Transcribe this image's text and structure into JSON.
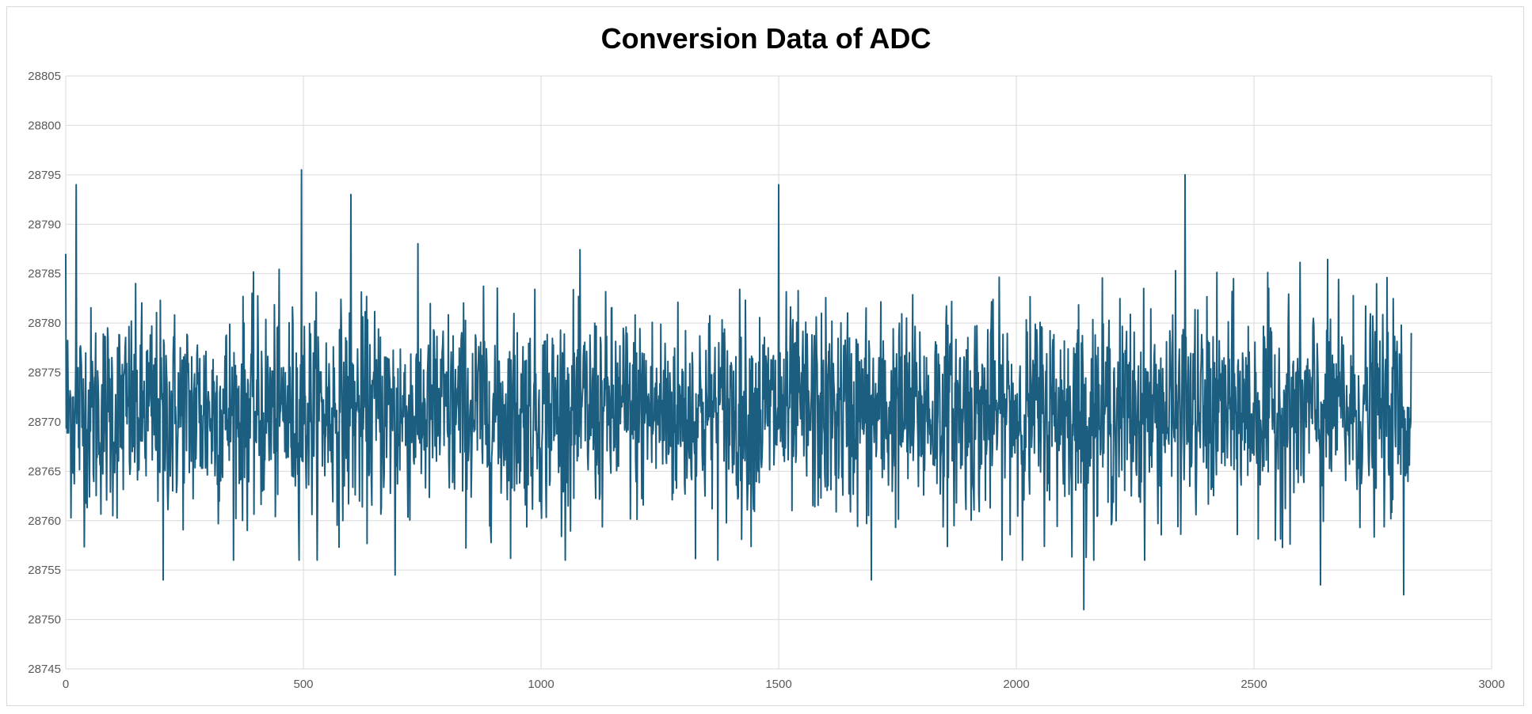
{
  "chart_data": {
    "type": "line",
    "title": "Conversion Data of ADC",
    "xlabel": "",
    "ylabel": "",
    "xlim": [
      0,
      3000
    ],
    "ylim": [
      28745,
      28805
    ],
    "x_ticks": [
      "0",
      "500",
      "1000",
      "1500",
      "2000",
      "2500",
      "3000"
    ],
    "y_ticks": [
      "28745",
      "28750",
      "28755",
      "28760",
      "28765",
      "28770",
      "28775",
      "28780",
      "28785",
      "28790",
      "28795",
      "28800",
      "28805"
    ],
    "grid": true,
    "legend": "none",
    "series": [
      {
        "color": "#1b5e80",
        "n_points": 2832,
        "x_start": 0,
        "x_step": 1,
        "mean": 28771,
        "typical_range": [
          28759,
          28784
        ],
        "notable_points": [
          {
            "x": 0,
            "y": 28787
          },
          {
            "x": 22,
            "y": 28794
          },
          {
            "x": 205,
            "y": 28754
          },
          {
            "x": 496,
            "y": 28795.5
          },
          {
            "x": 600,
            "y": 28793
          },
          {
            "x": 693,
            "y": 28754.5
          },
          {
            "x": 1500,
            "y": 28794
          },
          {
            "x": 1695,
            "y": 28754
          },
          {
            "x": 2142,
            "y": 28751
          },
          {
            "x": 2355,
            "y": 28795
          },
          {
            "x": 2640,
            "y": 28753.5
          },
          {
            "x": 2815,
            "y": 28752.5
          },
          {
            "x": 2831,
            "y": 28779
          }
        ]
      }
    ]
  }
}
